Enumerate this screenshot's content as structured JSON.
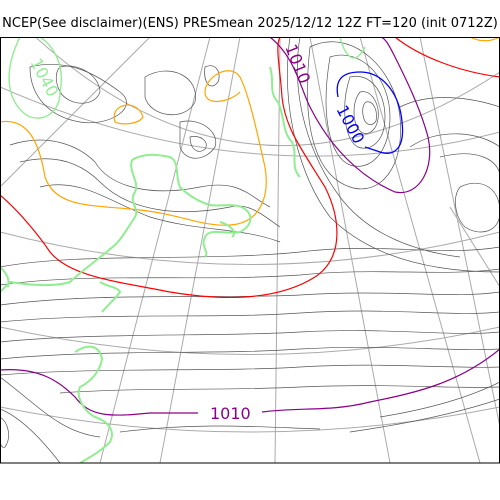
{
  "title": "NCEP(See disclaimer)(ENS) PRESmean 2025/12/12 12Z FT=120 (init 0712Z)",
  "contour_labels": {
    "top_left": "1040",
    "top_center": "1010",
    "low_center": "1000",
    "bottom": "1010"
  },
  "colors": {
    "frame": "#000000",
    "graticule": "#aaaaaa",
    "coast": "#90ee90",
    "isobar": "#555555",
    "contour_1010": "#8b008b",
    "contour_1000": "#0000ff",
    "contour_1020": "#ff0000",
    "contour_1030": "#ffa500",
    "contour_1040": "#90ee90"
  }
}
